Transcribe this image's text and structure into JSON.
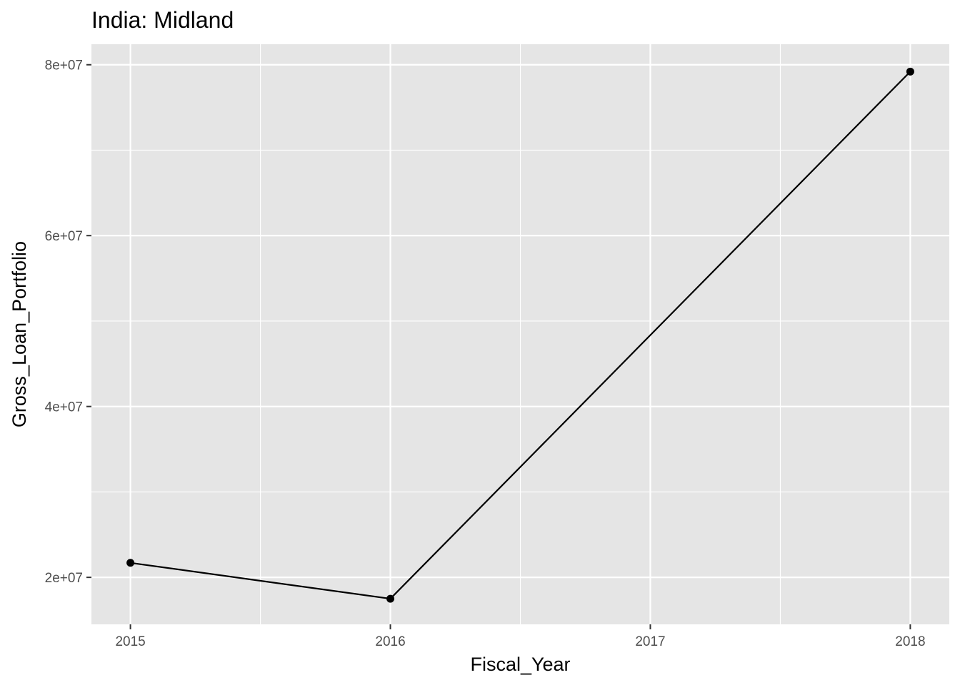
{
  "chart_data": {
    "type": "line",
    "title": "India:  Midland",
    "xlabel": "Fiscal_Year",
    "ylabel": "Gross_Loan_Portfolio",
    "x": [
      2015,
      2016,
      2018
    ],
    "series": [
      {
        "values": [
          21700000,
          17500000,
          79200000
        ]
      }
    ],
    "xlim": [
      2014.85,
      2018.15
    ],
    "ylim": [
      14500000,
      82400000
    ],
    "x_ticks": [
      2015,
      2016,
      2017,
      2018
    ],
    "x_tick_labels": [
      "2015",
      "2016",
      "2017",
      "2018"
    ],
    "y_ticks": [
      20000000,
      40000000,
      60000000,
      80000000
    ],
    "y_tick_labels": [
      "2e+07",
      "4e+07",
      "6e+07",
      "8e+07"
    ],
    "grid": true,
    "legend": "none",
    "colors": {
      "panel": "#e5e5e5",
      "grid": "#ffffff",
      "line": "#000000",
      "tick_text": "#4d4d4d"
    }
  }
}
